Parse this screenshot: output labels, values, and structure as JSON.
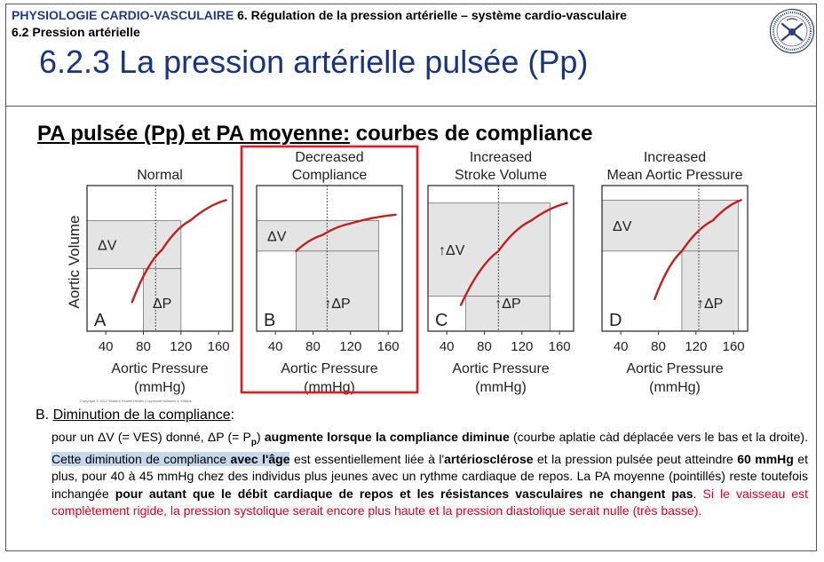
{
  "header": {
    "course": "PHYSIOLOGIE CARDIO-VASCULAIRE",
    "chapter": " 6. Régulation de la pression artérielle – système cardio-vasculaire",
    "section": "6.2 Pression artérielle",
    "title": "6.2.3 La pression artérielle pulsée (Pp)"
  },
  "slide": {
    "subtitle_underlined": "PA pulsée (Pp) et PA moyenne:",
    "subtitle_rest": " courbes de compliance",
    "copyright": "Copyright © 2012 Wolters Kluwer Health | Lippincott Williams & Wilkins"
  },
  "chart_data": [
    {
      "type": "line",
      "letter": "A",
      "title": [
        "Normal"
      ],
      "highlighted": false,
      "xlabel": [
        "Aortic Pressure",
        "(mmHg)"
      ],
      "ylabel": "Aortic Volume",
      "xticks": [
        40,
        80,
        120,
        160
      ],
      "xlim": [
        20,
        175
      ],
      "curve_x": [
        68,
        100,
        130,
        168
      ],
      "curve_y": [
        0.2,
        0.56,
        0.76,
        0.9
      ],
      "mean_pressure": 93,
      "deltaV_label": "ΔV",
      "deltaP_label": "ΔP",
      "deltaV_arrow": false,
      "deltaP_arrow": false,
      "pressure_range": [
        80,
        120
      ],
      "volume_range": [
        0.43,
        0.76
      ]
    },
    {
      "type": "line",
      "letter": "B",
      "title": [
        "Decreased",
        "Compliance"
      ],
      "highlighted": true,
      "xlabel": [
        "Aortic Pressure",
        "(mmHg)"
      ],
      "ylabel": "",
      "xticks": [
        40,
        80,
        120,
        160
      ],
      "xlim": [
        20,
        175
      ],
      "curve_x": [
        62,
        90,
        120,
        168
      ],
      "curve_y": [
        0.55,
        0.66,
        0.74,
        0.8
      ],
      "mean_pressure": 95,
      "deltaV_label": "ΔV",
      "deltaP_label": "ΔP",
      "deltaV_arrow": false,
      "deltaP_arrow": true,
      "pressure_range": [
        62,
        150
      ],
      "volume_range": [
        0.55,
        0.76
      ]
    },
    {
      "type": "line",
      "letter": "C",
      "title": [
        "Increased",
        "Stroke Volume"
      ],
      "highlighted": false,
      "xlabel": [
        "Aortic Pressure",
        "(mmHg)"
      ],
      "ylabel": "",
      "xticks": [
        40,
        80,
        120,
        160
      ],
      "xlim": [
        20,
        175
      ],
      "curve_x": [
        55,
        95,
        130,
        168
      ],
      "curve_y": [
        0.18,
        0.55,
        0.76,
        0.88
      ],
      "mean_pressure": 95,
      "deltaV_label": "ΔV",
      "deltaP_label": "ΔP",
      "deltaV_arrow": true,
      "deltaP_arrow": true,
      "pressure_range": [
        60,
        150
      ],
      "volume_range": [
        0.24,
        0.88
      ]
    },
    {
      "type": "line",
      "letter": "D",
      "title": [
        "Increased",
        "Mean Aortic Pressure"
      ],
      "highlighted": false,
      "xlabel": [
        "Aortic Pressure",
        "(mmHg)"
      ],
      "ylabel": "",
      "xticks": [
        40,
        80,
        120,
        160
      ],
      "xlim": [
        20,
        175
      ],
      "curve_x": [
        76,
        105,
        138,
        168
      ],
      "curve_y": [
        0.22,
        0.55,
        0.76,
        0.9
      ],
      "mean_pressure": 123,
      "deltaV_label": "ΔV",
      "deltaP_label": "ΔP",
      "deltaV_arrow": false,
      "deltaP_arrow": true,
      "pressure_range": [
        105,
        165
      ],
      "volume_range": [
        0.55,
        0.9
      ]
    }
  ],
  "text": {
    "section_prefix": "B.  ",
    "section_title": "Diminution de la compliance",
    "section_colon": ":",
    "p1": "pour un ΔV (= VES) donné, ΔP (= P",
    "p1_sub": "p",
    "p1b": ") ",
    "p1_bold": "augmente lorsque la compliance diminue",
    "p1c": " (courbe aplatie càd déplacée vers le bas et la droite). ",
    "p2_hl": "Cette diminution de compliance",
    "p2_space": " ",
    "p2_hl_bold": "avec l'âge",
    "p2": " est essentiellement liée à l'",
    "p2_bold": "artériosclérose",
    "p2b": " et la pression pulsée peut atteindre ",
    "p2_bold2": "60 mmHg",
    "p2c": " et plus, pour 40 à 45 mmHg chez des individus plus jeunes avec un rythme cardiaque de repos. La PA moyenne (pointillés) reste toutefois inchangée ",
    "p3_bold": "pour autant que le débit cardiaque de repos et les résistances vasculaires ne changent pas",
    "p3": ". ",
    "p3_red": "Si le vaisseau est complètement rigide, la pression systolique serait encore plus haute et la pression diastolique serait nulle (très basse)."
  },
  "colors": {
    "title_blue": "#1a3580",
    "course_blue": "#1f3c88",
    "curve_red": "#c0201e",
    "highlight_box": "#e01b22",
    "shade": "#e4e4e4",
    "text_highlight": "#c6d8ee",
    "note_red": "#e0001a"
  }
}
